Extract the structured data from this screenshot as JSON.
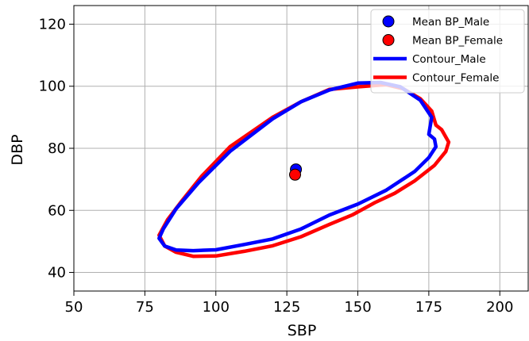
{
  "chart_data": {
    "type": "scatter",
    "xlabel": "SBP",
    "ylabel": "DBP",
    "xlim": [
      50,
      210
    ],
    "ylim": [
      34,
      126
    ],
    "x_ticks": [
      50,
      75,
      100,
      125,
      150,
      175,
      200
    ],
    "y_ticks": [
      40,
      60,
      80,
      100,
      120
    ],
    "grid": true,
    "legend_position": "top-right",
    "points": [
      {
        "name": "Mean BP_Male",
        "x": 128.2,
        "y": 73.2,
        "color": "#0000ff"
      },
      {
        "name": "Mean BP_Female",
        "x": 127.9,
        "y": 71.5,
        "color": "#ff0000"
      }
    ],
    "contours": [
      {
        "name": "Contour_Female",
        "color": "#ff0000",
        "points": [
          [
            80,
            52
          ],
          [
            82,
            48.5
          ],
          [
            86,
            46.5
          ],
          [
            92,
            45.2
          ],
          [
            100,
            45.3
          ],
          [
            110,
            46.8
          ],
          [
            120,
            48.6
          ],
          [
            130,
            51.5
          ],
          [
            140,
            55.5
          ],
          [
            148,
            58.5
          ],
          [
            156,
            62.5
          ],
          [
            163,
            65.5
          ],
          [
            170,
            69.5
          ],
          [
            177,
            74.5
          ],
          [
            181,
            79
          ],
          [
            182,
            82
          ],
          [
            179.5,
            86
          ],
          [
            177.5,
            87.5
          ],
          [
            176,
            92
          ],
          [
            172,
            96
          ],
          [
            166,
            99.2
          ],
          [
            160,
            100.5
          ],
          [
            150,
            99.8
          ],
          [
            140,
            99
          ],
          [
            130,
            95
          ],
          [
            120,
            90
          ],
          [
            105,
            80.5
          ],
          [
            95,
            71
          ],
          [
            88,
            63
          ],
          [
            83,
            57
          ],
          [
            80,
            52
          ]
        ]
      },
      {
        "name": "Contour_Male",
        "color": "#0000ff",
        "points": [
          [
            80,
            51
          ],
          [
            82,
            48.5
          ],
          [
            86,
            47.2
          ],
          [
            92,
            47
          ],
          [
            100,
            47.3
          ],
          [
            110,
            49
          ],
          [
            120,
            50.8
          ],
          [
            130,
            54
          ],
          [
            140,
            58.5
          ],
          [
            150,
            62
          ],
          [
            160,
            66.5
          ],
          [
            170,
            72.5
          ],
          [
            175,
            77
          ],
          [
            177.5,
            80.5
          ],
          [
            177,
            83
          ],
          [
            175,
            84.5
          ],
          [
            176,
            90
          ],
          [
            172,
            95.5
          ],
          [
            165,
            99.8
          ],
          [
            158,
            101.2
          ],
          [
            150,
            101
          ],
          [
            140,
            98.8
          ],
          [
            130,
            95
          ],
          [
            120,
            89.5
          ],
          [
            105,
            79
          ],
          [
            94,
            69
          ],
          [
            86,
            60.5
          ],
          [
            81.5,
            54
          ],
          [
            80,
            51
          ]
        ]
      }
    ],
    "legend": [
      {
        "label": "Mean BP_Male",
        "kind": "marker",
        "color": "#0000ff"
      },
      {
        "label": "Mean BP_Female",
        "kind": "marker",
        "color": "#ff0000"
      },
      {
        "label": "Contour_Male",
        "kind": "line",
        "color": "#0000ff"
      },
      {
        "label": "Contour_Female",
        "kind": "line",
        "color": "#ff0000"
      }
    ]
  }
}
